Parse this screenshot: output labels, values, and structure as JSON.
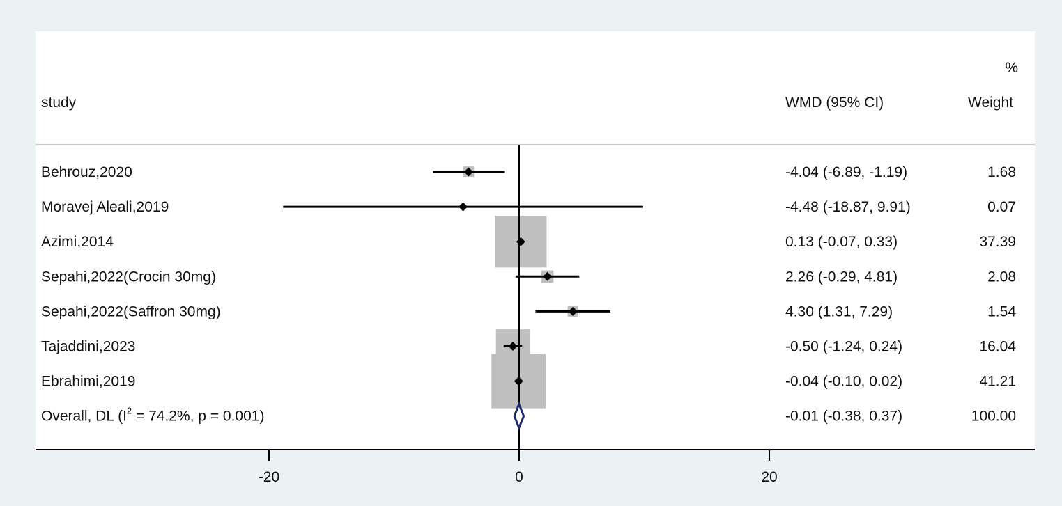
{
  "chart_data": {
    "type": "forest",
    "header": {
      "study": "study",
      "effect": "WMD (95% CI)",
      "weight_top": "%",
      "weight": "Weight"
    },
    "studies": [
      {
        "name": "Behrouz,2020",
        "wmd": -4.04,
        "lo": -6.89,
        "hi": -1.19,
        "ci_text": "-4.04 (-6.89, -1.19)",
        "weight": 1.68,
        "weight_text": "1.68"
      },
      {
        "name": "Moravej Aleali,2019",
        "wmd": -4.48,
        "lo": -18.87,
        "hi": 9.91,
        "ci_text": "-4.48 (-18.87, 9.91)",
        "weight": 0.07,
        "weight_text": "0.07"
      },
      {
        "name": "Azimi,2014",
        "wmd": 0.13,
        "lo": -0.07,
        "hi": 0.33,
        "ci_text": "0.13 (-0.07, 0.33)",
        "weight": 37.39,
        "weight_text": "37.39"
      },
      {
        "name": "Sepahi,2022(Crocin 30mg)",
        "wmd": 2.26,
        "lo": -0.29,
        "hi": 4.81,
        "ci_text": "2.26 (-0.29, 4.81)",
        "weight": 2.08,
        "weight_text": "2.08"
      },
      {
        "name": "Sepahi,2022(Saffron 30mg)",
        "wmd": 4.3,
        "lo": 1.31,
        "hi": 7.29,
        "ci_text": "4.30 (1.31, 7.29)",
        "weight": 1.54,
        "weight_text": "1.54"
      },
      {
        "name": "Tajaddini,2023",
        "wmd": -0.5,
        "lo": -1.24,
        "hi": 0.24,
        "ci_text": "-0.50 (-1.24, 0.24)",
        "weight": 16.04,
        "weight_text": "16.04"
      },
      {
        "name": "Ebrahimi,2019",
        "wmd": -0.04,
        "lo": -0.1,
        "hi": 0.02,
        "ci_text": "-0.04 (-0.10, 0.02)",
        "weight": 41.21,
        "weight_text": "41.21"
      }
    ],
    "overall": {
      "name_pre": "Overall, DL (I",
      "name_sup": "2",
      "name_post": " = 74.2%, p = 0.001)",
      "wmd": -0.01,
      "lo": -0.38,
      "hi": 0.37,
      "ci_text": "-0.01 (-0.38, 0.37)",
      "weight_text": "100.00"
    },
    "x_axis": {
      "ticks": [
        -20,
        0,
        20
      ],
      "tick_labels": [
        "-20",
        "0",
        "20"
      ],
      "range": [
        -38.7,
        41.2
      ]
    },
    "null_line": 0,
    "colors": {
      "box": "#bfbfbf",
      "point": "#000000",
      "diamond": "#1f2a6b",
      "background": "#eaf2f3",
      "panel": "#ffffff",
      "separator": "#c8c8c8"
    }
  }
}
